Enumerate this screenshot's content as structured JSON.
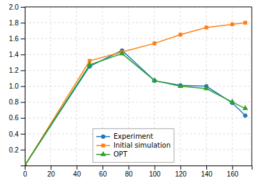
{
  "chart_data": {
    "type": "line",
    "x": [
      0,
      50,
      75,
      100,
      120,
      140,
      160,
      170
    ],
    "series": [
      {
        "name": "Experiment",
        "marker": "circle",
        "values": [
          0,
          1.25,
          1.45,
          1.07,
          1.01,
          1.0,
          0.79,
          0.63
        ]
      },
      {
        "name": "Initial simulation",
        "marker": "square",
        "values": [
          0,
          1.32,
          1.43,
          1.54,
          1.65,
          1.74,
          1.78,
          1.8
        ]
      },
      {
        "name": "OPT",
        "marker": "triangle",
        "values": [
          0,
          1.27,
          1.41,
          1.07,
          1.0,
          0.97,
          0.8,
          0.72
        ]
      }
    ],
    "xlim": [
      0,
      175
    ],
    "ylim": [
      0,
      2.0
    ],
    "xticks": [
      0,
      20,
      40,
      60,
      80,
      100,
      120,
      140,
      160
    ],
    "yticks": [
      0.2,
      0.4,
      0.6,
      0.8,
      {
        "value": 1.0,
        "label": "1.0"
      },
      1.2,
      1.4,
      1.6,
      1.8,
      {
        "value": 2.0,
        "label": "2.0"
      }
    ],
    "grid": true,
    "legend": "lower left"
  }
}
